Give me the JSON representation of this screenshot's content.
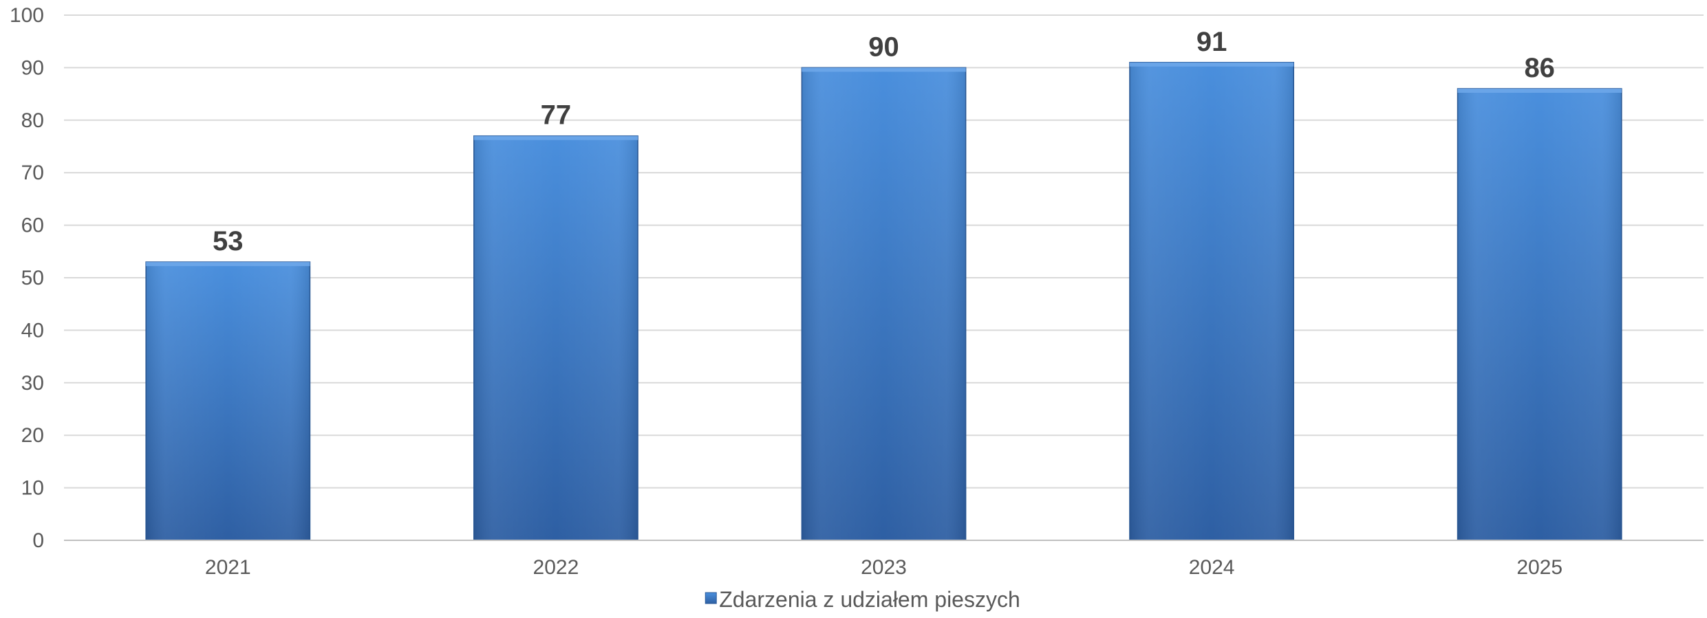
{
  "chart_data": {
    "type": "bar",
    "categories": [
      "2021",
      "2022",
      "2023",
      "2024",
      "2025"
    ],
    "series": [
      {
        "name": "Zdarzenia z udziałem pieszych",
        "values": [
          53,
          77,
          90,
          91,
          86
        ]
      }
    ],
    "ylim": [
      0,
      100
    ],
    "yticks": [
      0,
      10,
      20,
      30,
      40,
      50,
      60,
      70,
      80,
      90,
      100
    ],
    "grid": true,
    "legend_position": "bottom",
    "data_labels": true,
    "colors": {
      "bar_top": "#4a8fdd",
      "bar_bottom": "#2e5fa3",
      "bar_edge": "#2b5a99",
      "grid": "#d9d9d9",
      "axis": "#bfbfbf",
      "text": "#595959",
      "data_label": "#404040"
    }
  }
}
